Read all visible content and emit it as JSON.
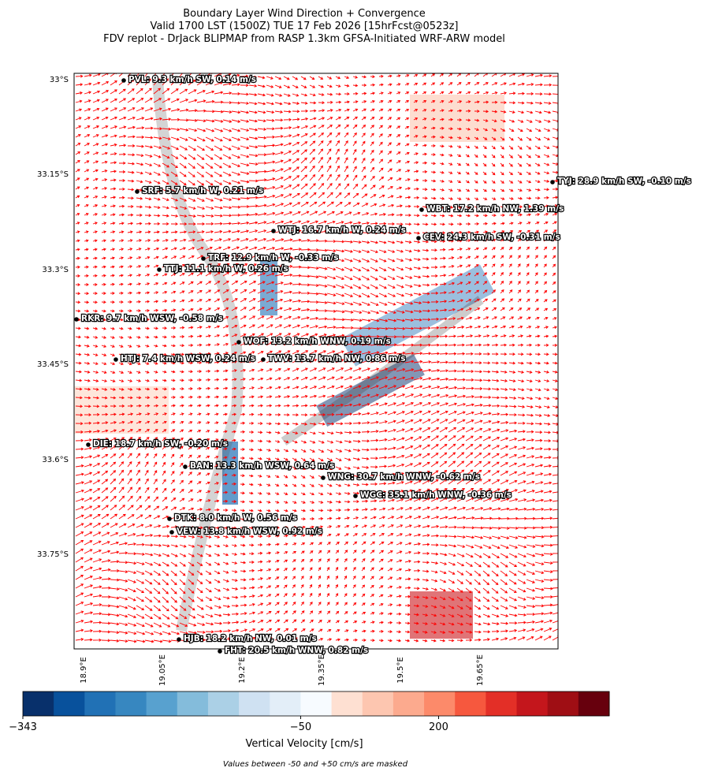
{
  "title": [
    "Boundary Layer Wind Direction + Convergence",
    "Valid 1700 LST (1500Z) TUE 17 Feb 2026 [15hrFcst@0523z]",
    "FDV replot - DrJack BLIPMAP from RASP 1.3km GFSA-Initiated WRF-ARW model"
  ],
  "lat_labels": [
    "33°S",
    "33.15°S",
    "33.3°S",
    "33.45°S",
    "33.6°S",
    "33.75°S"
  ],
  "lon_labels": [
    "18.9°E",
    "19.05°E",
    "19.2°E",
    "19.35°E",
    "19.5°E",
    "19.65°E"
  ],
  "stations": [
    {
      "label": "PVL: 9.3 km/h SW, 0.14 m/s"
    },
    {
      "label": "TYJ: 28.9 km/h SW, -0.10 m/s"
    },
    {
      "label": "SRF: 5.7 km/h W, 0.21 m/s"
    },
    {
      "label": "WBT: 17.2 km/h NW, 1.39 m/s"
    },
    {
      "label": "WTJ: 16.7 km/h W, 0.24 m/s"
    },
    {
      "label": "CEV: 24.3 km/h SW, -0.31 m/s"
    },
    {
      "label": "TRF: 12.9 km/h W, -0.33 m/s"
    },
    {
      "label": "TTJ: 11.1 km/h W, 0.26 m/s"
    },
    {
      "label": "RKR: 9.7 km/h WSW, -0.58 m/s"
    },
    {
      "label": "WOF: 13.2 km/h WNW, 0.19 m/s"
    },
    {
      "label": "HTJ: 7.4 km/h WSW, 0.24 m/s"
    },
    {
      "label": "TWV: 13.7 km/h NW, 0.86 m/s"
    },
    {
      "label": "DIE: 18.7 km/h SW, -0.20 m/s"
    },
    {
      "label": "BAN: 13.3 km/h WSW, 0.64 m/s"
    },
    {
      "label": "WNG: 30.7 km/h WNW, -0.62 m/s"
    },
    {
      "label": "WGC: 35.1 km/h WNW, -0.36 m/s"
    },
    {
      "label": "DTK: 8.0 km/h W, 0.56 m/s"
    },
    {
      "label": "VEW: 13.8 km/h WSW, 0.92 m/s"
    },
    {
      "label": "HJB: 18.2 km/h NW, 0.01 m/s"
    },
    {
      "label": "FHT: 20.5 km/h WNW, 0.82 m/s"
    }
  ],
  "colorbar": {
    "colors": [
      "#08306b",
      "#08519c",
      "#2171b5",
      "#3787c0",
      "#58a1cf",
      "#84bcdb",
      "#abd0e6",
      "#cfe1f2",
      "#e3eef8",
      "#f7fbff",
      "#fee0d2",
      "#fdc6b0",
      "#fcaa8e",
      "#fc8a6a",
      "#f6583e",
      "#e32f27",
      "#c4161c",
      "#9f0e14",
      "#67000d"
    ],
    "ticks": [
      {
        "value": -343,
        "label": "−343"
      },
      {
        "value": -50,
        "label": "−50"
      },
      200
    ],
    "label": "Vertical Velocity [cm/s]"
  },
  "note": "Values between -50 and +50 cm/s are masked",
  "vector_color": "#ff0000"
}
